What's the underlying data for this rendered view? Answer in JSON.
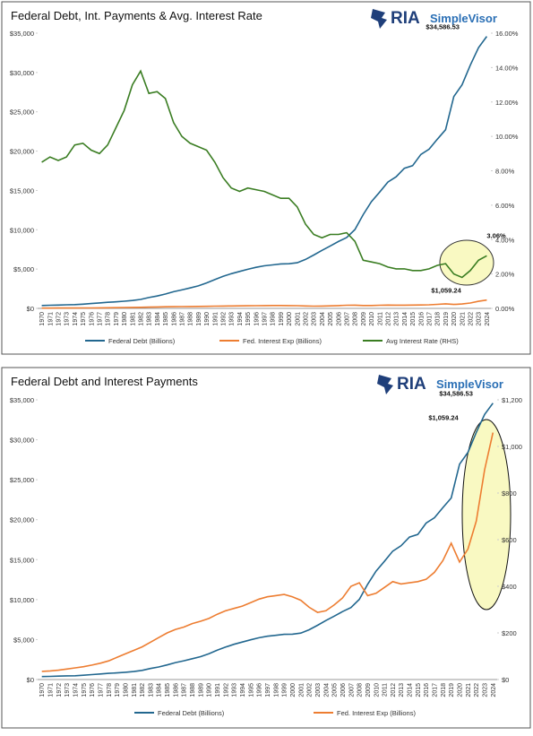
{
  "chart_data": [
    {
      "type": "line",
      "title": "Federal Debt, Int. Payments & Avg. Interest Rate",
      "brand": "RIA",
      "brand_product": "SimpleVisor",
      "categories": [
        "1970",
        "1971",
        "1972",
        "1973",
        "1974",
        "1975",
        "1976",
        "1977",
        "1978",
        "1979",
        "1980",
        "1981",
        "1982",
        "1983",
        "1984",
        "1985",
        "1986",
        "1987",
        "1988",
        "1989",
        "1990",
        "1991",
        "1992",
        "1993",
        "1994",
        "1995",
        "1996",
        "1997",
        "1998",
        "1999",
        "2000",
        "2001",
        "2002",
        "2003",
        "2004",
        "2005",
        "2006",
        "2007",
        "2008",
        "2009",
        "2010",
        "2011",
        "2012",
        "2013",
        "2014",
        "2015",
        "2016",
        "2017",
        "2018",
        "2019",
        "2020",
        "2021",
        "2022",
        "2023",
        "2024"
      ],
      "series": [
        {
          "name": "Federal Debt (Billions)",
          "color": "#22678f",
          "values": [
            370,
            398,
            427,
            458,
            475,
            533,
            620,
            699,
            772,
            827,
            908,
            998,
            1142,
            1377,
            1572,
            1823,
            2125,
            2350,
            2602,
            2857,
            3233,
            3665,
            4065,
            4411,
            4693,
            4974,
            5225,
            5413,
            5526,
            5656,
            5674,
            5807,
            6228,
            6783,
            7379,
            7933,
            8507,
            9008,
            10025,
            11910,
            13562,
            14790,
            16066,
            16738,
            17824,
            18151,
            19573,
            20245,
            21516,
            22719,
            26945,
            28429,
            30929,
            33167,
            34586.53
          ],
          "value_labels": [
            null,
            null,
            null,
            null,
            null,
            null,
            null,
            null,
            null,
            null,
            null,
            null,
            null,
            null,
            null,
            null,
            null,
            null,
            null,
            null,
            null,
            null,
            null,
            null,
            null,
            null,
            null,
            null,
            null,
            null,
            null,
            null,
            null,
            null,
            null,
            null,
            null,
            null,
            null,
            null,
            null,
            null,
            null,
            null,
            null,
            null,
            null,
            null,
            null,
            null,
            null,
            null,
            null,
            null,
            "$34,586.53"
          ]
        },
        {
          "name": "Fed. Interest Exp (Billions)",
          "color": "#ed7d31",
          "values": [
            35,
            37,
            40,
            45,
            50,
            55,
            62,
            70,
            80,
            95,
            110,
            125,
            140,
            160,
            180,
            200,
            215,
            225,
            240,
            250,
            262,
            280,
            295,
            305,
            315,
            330,
            345,
            355,
            360,
            365,
            355,
            340,
            310,
            288,
            295,
            320,
            350,
            400,
            415,
            360,
            370,
            395,
            420,
            410,
            415,
            420,
            430,
            460,
            510,
            585,
            504,
            560,
            680,
            900,
            1059.24
          ],
          "value_labels": [
            null,
            null,
            null,
            null,
            null,
            null,
            null,
            null,
            null,
            null,
            null,
            null,
            null,
            null,
            null,
            null,
            null,
            null,
            null,
            null,
            null,
            null,
            null,
            null,
            null,
            null,
            null,
            null,
            null,
            null,
            null,
            null,
            null,
            null,
            null,
            null,
            null,
            null,
            null,
            null,
            null,
            null,
            null,
            null,
            null,
            null,
            null,
            null,
            null,
            null,
            null,
            null,
            null,
            null,
            "$1,059.24"
          ]
        },
        {
          "name": "Avg Interest Rate (RHS)",
          "color": "#3a7d22",
          "axis": "y2",
          "values": [
            8.5,
            8.8,
            8.6,
            8.8,
            9.5,
            9.6,
            9.2,
            9.0,
            9.5,
            10.5,
            11.5,
            13.0,
            13.8,
            12.5,
            12.6,
            12.2,
            10.8,
            10.0,
            9.6,
            9.4,
            9.2,
            8.5,
            7.6,
            7.0,
            6.8,
            7.0,
            6.9,
            6.8,
            6.6,
            6.4,
            6.4,
            5.9,
            4.9,
            4.3,
            4.1,
            4.3,
            4.3,
            4.4,
            3.9,
            2.8,
            2.7,
            2.6,
            2.4,
            2.3,
            2.3,
            2.2,
            2.2,
            2.3,
            2.5,
            2.6,
            2.0,
            1.8,
            2.2,
            2.8,
            3.06
          ],
          "value_labels": [
            null,
            null,
            null,
            null,
            null,
            null,
            null,
            null,
            null,
            null,
            null,
            null,
            null,
            null,
            null,
            null,
            null,
            null,
            null,
            null,
            null,
            null,
            null,
            null,
            null,
            null,
            null,
            null,
            null,
            null,
            null,
            null,
            null,
            null,
            null,
            null,
            null,
            null,
            null,
            null,
            null,
            null,
            null,
            null,
            null,
            null,
            null,
            null,
            null,
            null,
            null,
            null,
            null,
            null,
            "3.06%"
          ]
        }
      ],
      "ylim": [
        0,
        35000
      ],
      "yticks": [
        {
          "value": 0,
          "label": "$0"
        },
        {
          "value": 5000,
          "label": "$5,000"
        },
        {
          "value": 10000,
          "label": "$10,000"
        },
        {
          "value": 15000,
          "label": "$15,000"
        },
        {
          "value": 20000,
          "label": "$20,000"
        },
        {
          "value": 25000,
          "label": "$25,000"
        },
        {
          "value": 30000,
          "label": "$30,000"
        },
        {
          "value": 35000,
          "label": "$35,000"
        }
      ],
      "y2lim": [
        0,
        16
      ],
      "y2ticks": [
        {
          "value": 0,
          "label": "0.00%"
        },
        {
          "value": 2,
          "label": "2.00%"
        },
        {
          "value": 4,
          "label": "4.00%"
        },
        {
          "value": 6,
          "label": "6.00%"
        },
        {
          "value": 8,
          "label": "8.00%"
        },
        {
          "value": 10,
          "label": "10.00%"
        },
        {
          "value": 12,
          "label": "12.00%"
        },
        {
          "value": 14,
          "label": "14.00%"
        },
        {
          "value": 16,
          "label": "16.00%"
        }
      ],
      "grid": false
    },
    {
      "type": "line",
      "title": "Federal Debt and Interest Payments",
      "brand": "RIA",
      "brand_product": "SimpleVisor",
      "categories": [
        "1970",
        "1971",
        "1972",
        "1973",
        "1974",
        "1975",
        "1976",
        "1977",
        "1978",
        "1979",
        "1980",
        "1981",
        "1982",
        "1983",
        "1984",
        "1985",
        "1986",
        "1987",
        "1988",
        "1989",
        "1990",
        "1991",
        "1992",
        "1993",
        "1994",
        "1995",
        "1996",
        "1997",
        "1998",
        "1999",
        "2000",
        "2001",
        "2002",
        "2003",
        "2004",
        "2005",
        "2006",
        "2007",
        "2008",
        "2009",
        "2010",
        "2011",
        "2012",
        "2013",
        "2014",
        "2015",
        "2016",
        "2017",
        "2018",
        "2019",
        "2020",
        "2021",
        "2022",
        "2023",
        "2024"
      ],
      "series": [
        {
          "name": "Federal Debt (Billions)",
          "color": "#22678f",
          "values": [
            370,
            398,
            427,
            458,
            475,
            533,
            620,
            699,
            772,
            827,
            908,
            998,
            1142,
            1377,
            1572,
            1823,
            2125,
            2350,
            2602,
            2857,
            3233,
            3665,
            4065,
            4411,
            4693,
            4974,
            5225,
            5413,
            5526,
            5656,
            5674,
            5807,
            6228,
            6783,
            7379,
            7933,
            8507,
            9008,
            10025,
            11910,
            13562,
            14790,
            16066,
            16738,
            17824,
            18151,
            19573,
            20245,
            21516,
            22719,
            26945,
            28429,
            30929,
            33167,
            34586.53
          ],
          "value_labels": [
            null,
            null,
            null,
            null,
            null,
            null,
            null,
            null,
            null,
            null,
            null,
            null,
            null,
            null,
            null,
            null,
            null,
            null,
            null,
            null,
            null,
            null,
            null,
            null,
            null,
            null,
            null,
            null,
            null,
            null,
            null,
            null,
            null,
            null,
            null,
            null,
            null,
            null,
            null,
            null,
            null,
            null,
            null,
            null,
            null,
            null,
            null,
            null,
            null,
            null,
            null,
            null,
            null,
            null,
            "$34,586.53"
          ]
        },
        {
          "name": "Fed. Interest Exp (Billions)",
          "color": "#ed7d31",
          "axis": "y2",
          "values": [
            35,
            37,
            40,
            45,
            50,
            55,
            62,
            70,
            80,
            95,
            110,
            125,
            140,
            160,
            180,
            200,
            215,
            225,
            240,
            250,
            262,
            280,
            295,
            305,
            315,
            330,
            345,
            355,
            360,
            365,
            355,
            340,
            310,
            288,
            295,
            320,
            350,
            400,
            415,
            360,
            370,
            395,
            420,
            410,
            415,
            420,
            430,
            460,
            510,
            585,
            504,
            560,
            680,
            900,
            1059.24
          ],
          "value_labels": [
            null,
            null,
            null,
            null,
            null,
            null,
            null,
            null,
            null,
            null,
            null,
            null,
            null,
            null,
            null,
            null,
            null,
            null,
            null,
            null,
            null,
            null,
            null,
            null,
            null,
            null,
            null,
            null,
            null,
            null,
            null,
            null,
            null,
            null,
            null,
            null,
            null,
            null,
            null,
            null,
            null,
            null,
            null,
            null,
            null,
            null,
            null,
            null,
            null,
            null,
            null,
            null,
            null,
            null,
            "$1,059.24"
          ]
        }
      ],
      "ylim": [
        0,
        35000
      ],
      "yticks": [
        {
          "value": 0,
          "label": "$0"
        },
        {
          "value": 5000,
          "label": "$5,000"
        },
        {
          "value": 10000,
          "label": "$10,000"
        },
        {
          "value": 15000,
          "label": "$15,000"
        },
        {
          "value": 20000,
          "label": "$20,000"
        },
        {
          "value": 25000,
          "label": "$25,000"
        },
        {
          "value": 30000,
          "label": "$30,000"
        },
        {
          "value": 35000,
          "label": "$35,000"
        }
      ],
      "y2lim": [
        0,
        1200
      ],
      "y2ticks": [
        {
          "value": 0,
          "label": "$0"
        },
        {
          "value": 200,
          "label": "$200"
        },
        {
          "value": 400,
          "label": "$400"
        },
        {
          "value": 600,
          "label": "$600"
        },
        {
          "value": 800,
          "label": "$800"
        },
        {
          "value": 1000,
          "label": "$1,000"
        },
        {
          "value": 1200,
          "label": "$1,200"
        }
      ],
      "grid": false
    }
  ]
}
